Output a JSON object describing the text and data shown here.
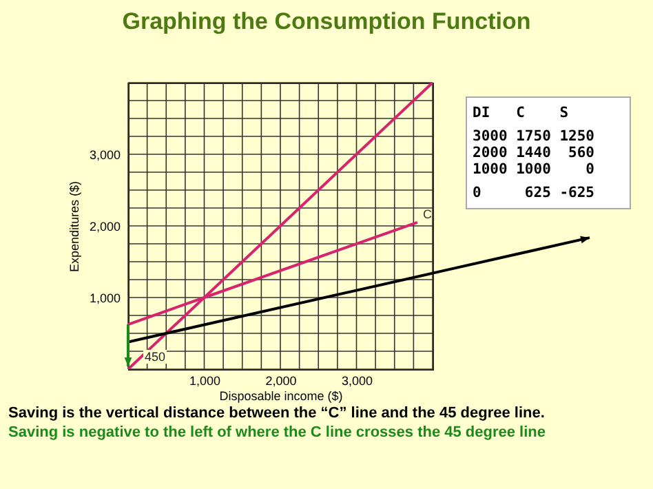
{
  "chart_data": [
    {
      "type": "line",
      "title": "Graphing the Consumption Function",
      "xlabel": "Disposable income ($)",
      "ylabel": "Expenditures ($)",
      "xlim": [
        0,
        4000
      ],
      "ylim": [
        0,
        4000
      ],
      "xticks": [
        {
          "value": 0,
          "label": null
        },
        {
          "value": 250,
          "label": null
        },
        {
          "value": 500,
          "label": null
        },
        {
          "value": 750,
          "label": null
        },
        {
          "value": 1000,
          "label": "1,000"
        },
        {
          "value": 1250,
          "label": null
        },
        {
          "value": 1500,
          "label": null
        },
        {
          "value": 1750,
          "label": null
        },
        {
          "value": 2000,
          "label": "2,000"
        },
        {
          "value": 2250,
          "label": null
        },
        {
          "value": 2500,
          "label": null
        },
        {
          "value": 2750,
          "label": null
        },
        {
          "value": 3000,
          "label": "3,000"
        },
        {
          "value": 3250,
          "label": null
        },
        {
          "value": 3500,
          "label": null
        },
        {
          "value": 3750,
          "label": null
        },
        {
          "value": 4000,
          "label": null
        }
      ],
      "yticks": [
        {
          "value": 0,
          "label": null
        },
        {
          "value": 250,
          "label": null
        },
        {
          "value": 500,
          "label": null
        },
        {
          "value": 750,
          "label": null
        },
        {
          "value": 1000,
          "label": "1,000"
        },
        {
          "value": 1250,
          "label": null
        },
        {
          "value": 1500,
          "label": null
        },
        {
          "value": 1750,
          "label": null
        },
        {
          "value": 2000,
          "label": "2,000"
        },
        {
          "value": 2250,
          "label": null
        },
        {
          "value": 2500,
          "label": null
        },
        {
          "value": 2750,
          "label": null
        },
        {
          "value": 3000,
          "label": "3,000"
        },
        {
          "value": 3250,
          "label": null
        },
        {
          "value": 3500,
          "label": null
        },
        {
          "value": 3750,
          "label": null
        },
        {
          "value": 4000,
          "label": null
        }
      ],
      "grid": true,
      "series": [
        {
          "color": "#d6246e",
          "x": [
            0,
            4000
          ],
          "values": [
            0,
            4000
          ]
        },
        {
          "name": "C",
          "color": "#d6246e",
          "x": [
            0,
            1000,
            3800
          ],
          "values": [
            625,
            1000,
            2050
          ]
        },
        {
          "color": "#000000",
          "x": [
            0,
            4000
          ],
          "values": [
            380,
            1340
          ]
        }
      ],
      "annotations": [
        "450",
        "Saving is the vertical distance between the “C” line and the 45 degree line.",
        "Saving is negative to the left of where the C line crosses the 45 degree line"
      ]
    },
    {
      "type": "other",
      "annotations": [
        "DI   C    S",
        "3000 1750 1250",
        "2000 1440  560",
        "1000 1000    0",
        "0     625 -625"
      ]
    }
  ]
}
